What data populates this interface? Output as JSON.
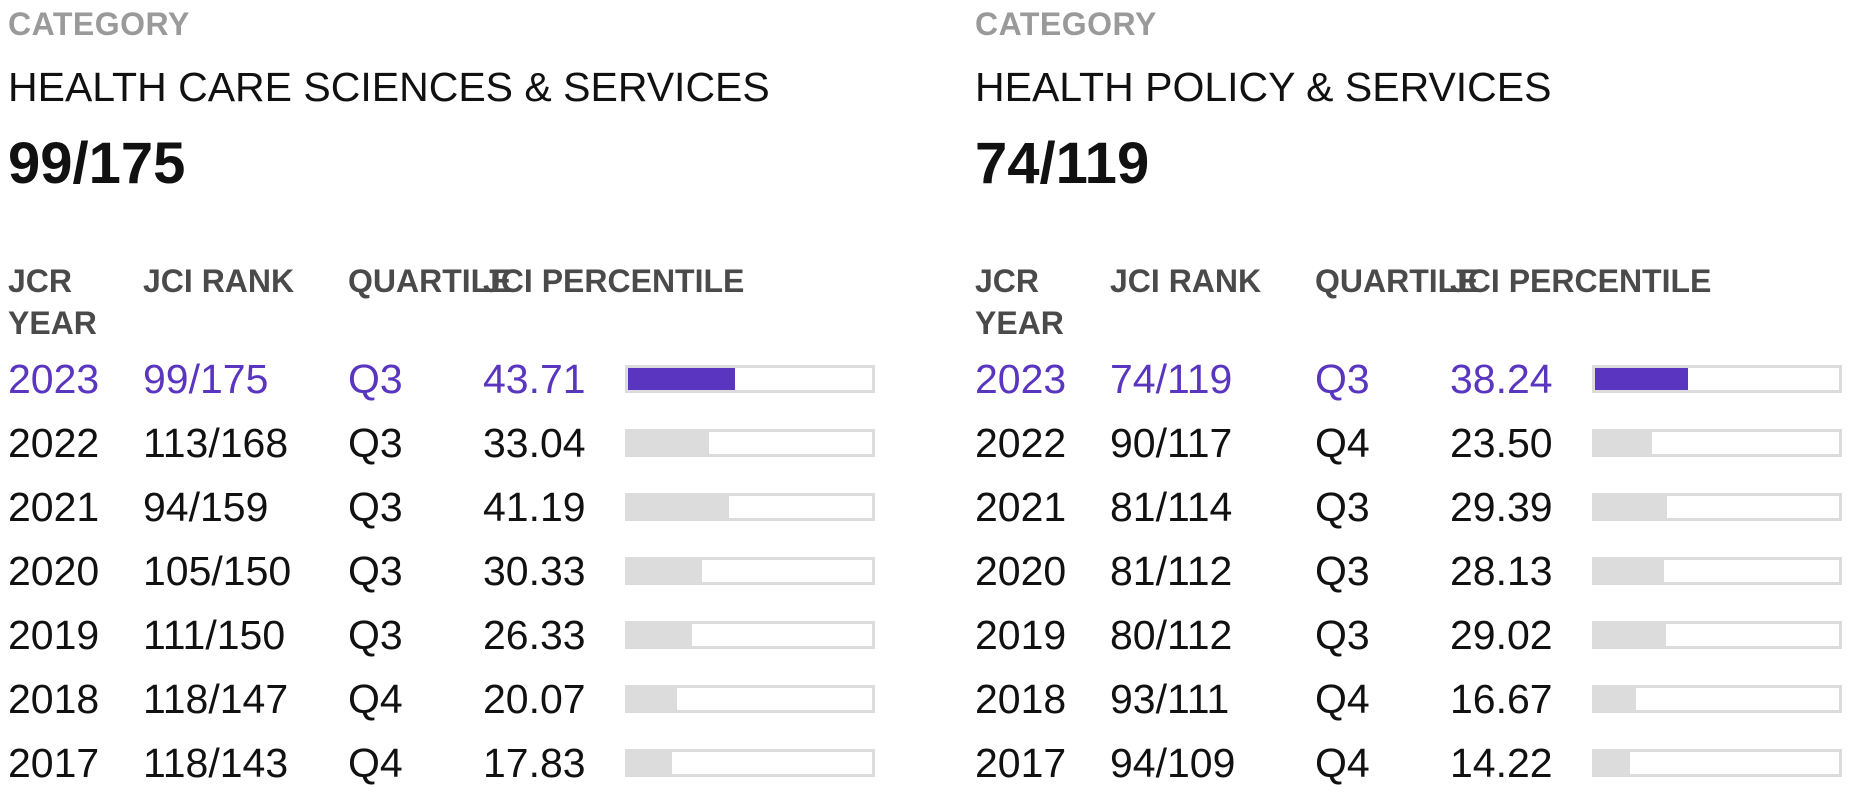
{
  "categories": [
    {
      "label": "CATEGORY",
      "name": "HEALTH CARE SCIENCES & SERVICES",
      "rank": "99/175",
      "headers": {
        "year": "JCR YEAR",
        "rank": "JCI RANK",
        "quartile": "QUARTILE",
        "percentile": "JCI PERCENTILE"
      },
      "rows": [
        {
          "year": "2023",
          "rank": "99/175",
          "quartile": "Q3",
          "percentile": "43.71"
        },
        {
          "year": "2022",
          "rank": "113/168",
          "quartile": "Q3",
          "percentile": "33.04"
        },
        {
          "year": "2021",
          "rank": "94/159",
          "quartile": "Q3",
          "percentile": "41.19"
        },
        {
          "year": "2020",
          "rank": "105/150",
          "quartile": "Q3",
          "percentile": "30.33"
        },
        {
          "year": "2019",
          "rank": "111/150",
          "quartile": "Q3",
          "percentile": "26.33"
        },
        {
          "year": "2018",
          "rank": "118/147",
          "quartile": "Q4",
          "percentile": "20.07"
        },
        {
          "year": "2017",
          "rank": "118/143",
          "quartile": "Q4",
          "percentile": "17.83"
        }
      ]
    },
    {
      "label": "CATEGORY",
      "name": "HEALTH POLICY & SERVICES",
      "rank": "74/119",
      "headers": {
        "year": "JCR YEAR",
        "rank": "JCI RANK",
        "quartile": "QUARTILE",
        "percentile": "JCI PERCENTILE"
      },
      "rows": [
        {
          "year": "2023",
          "rank": "74/119",
          "quartile": "Q3",
          "percentile": "38.24"
        },
        {
          "year": "2022",
          "rank": "90/117",
          "quartile": "Q4",
          "percentile": "23.50"
        },
        {
          "year": "2021",
          "rank": "81/114",
          "quartile": "Q3",
          "percentile": "29.39"
        },
        {
          "year": "2020",
          "rank": "81/112",
          "quartile": "Q3",
          "percentile": "28.13"
        },
        {
          "year": "2019",
          "rank": "80/112",
          "quartile": "Q3",
          "percentile": "29.02"
        },
        {
          "year": "2018",
          "rank": "93/111",
          "quartile": "Q4",
          "percentile": "16.67"
        },
        {
          "year": "2017",
          "rank": "94/109",
          "quartile": "Q4",
          "percentile": "14.22"
        }
      ]
    }
  ],
  "colors": {
    "highlight": "#5a36c0",
    "bar_fill": "#dcdcdc",
    "label_gray": "#9a9a9a"
  }
}
